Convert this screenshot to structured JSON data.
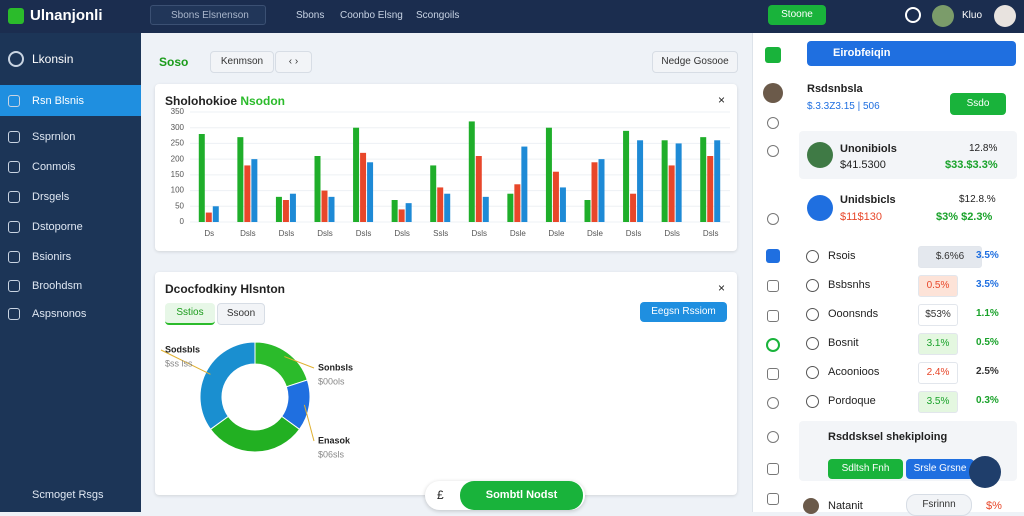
{
  "topbar": {
    "logo": "Ulnanjonli",
    "search": "Sbons Elsnenson",
    "nav": [
      "Sbons",
      "Coonbo Elsng",
      "Scongoils"
    ],
    "button": "Stoone",
    "user": "Kluo"
  },
  "sidebar": {
    "brand": "Lkonsin",
    "items": [
      "Rsn Blsnis",
      "Ssprnlon",
      "Conmois",
      "Drsgels",
      "Dstoporne",
      "Bsionirs",
      "Broohdsm",
      "Aspsnonos"
    ],
    "footer": "Scmoget Rsgs"
  },
  "main": {
    "title": "Soso",
    "buttons": [
      "Kenmson",
      "‹ ›"
    ],
    "right_button": "Nedge Gosooe"
  },
  "chart_data": [
    {
      "type": "bar",
      "title": "Sholohokioe",
      "subtitle": "Nsodon",
      "categories": [
        "Ds",
        "Dsls",
        "Dsls",
        "Dsls",
        "Dsls",
        "Dsls",
        "Ssls",
        "Dsls",
        "Dsle",
        "Dsle",
        "Dsle",
        "Dsls",
        "Dsls",
        "Dsls"
      ],
      "series": [
        {
          "name": "Green",
          "color": "#1fae2a",
          "values": [
            280,
            270,
            80,
            210,
            300,
            70,
            180,
            320,
            90,
            300,
            70,
            290,
            260,
            270
          ]
        },
        {
          "name": "Red",
          "color": "#e8472a",
          "values": [
            30,
            180,
            70,
            100,
            220,
            40,
            110,
            210,
            120,
            160,
            190,
            90,
            180,
            210
          ]
        },
        {
          "name": "Blue",
          "color": "#1e8ad6",
          "values": [
            50,
            200,
            90,
            80,
            190,
            60,
            90,
            80,
            240,
            110,
            200,
            260,
            250,
            260
          ]
        }
      ],
      "ylim": [
        0,
        350
      ],
      "yticks": [
        0,
        50,
        100,
        150,
        200,
        250,
        300,
        350
      ],
      "grid": true
    },
    {
      "type": "pie",
      "title": "Dcocfodkiny Hlsnton",
      "categories": [
        "Sonbsls",
        "Enasok",
        null,
        "Sodsbls"
      ],
      "values": [
        20,
        15,
        30,
        35
      ],
      "colors": [
        "#2bbb2b",
        "#1f6fe0",
        "#22b022",
        "#1a8fd0"
      ],
      "annotations": [
        "$00ols",
        "$06sls",
        null,
        "$ss lss"
      ]
    }
  ],
  "panel2": {
    "tabs": [
      "Sstios",
      "Ssoon"
    ],
    "button": "Eegsn Rssiom"
  },
  "floating": {
    "icon": "£",
    "button": "Sombtl Nodst"
  },
  "right": {
    "header": "Eirobfeiqin",
    "label": "Rsdsnbsla",
    "amount": "$.3.3Z3.15 | 506",
    "button": "Ssdo",
    "cards": [
      {
        "name": "Unonibiols",
        "value": "$41.5300",
        "pct": "12.8%",
        "change": "$33.$3.3%"
      },
      {
        "name": "Unidsbicls",
        "value": "$11$130",
        "pct": "$12.8.%",
        "change": "$3% $2.3%"
      }
    ],
    "rows": [
      [
        "Rsois",
        "$.6%6",
        "3.5%"
      ],
      [
        "Bsbsnhs",
        "0.5%",
        "3.5%"
      ],
      [
        "Ooonsnds",
        "$53%",
        "1.1%"
      ],
      [
        "Bosnit",
        "3.1%",
        "0.5%"
      ],
      [
        "Acoonioos",
        "2.4%",
        "2.5%"
      ],
      [
        "Pordoque",
        "3.5%",
        "0.3%"
      ]
    ],
    "section": "Rsddsksel shekiploing",
    "section_buttons": [
      "Sdltsh Fnh",
      "Srsle Grsne"
    ],
    "footer": [
      "Natanit",
      "Fsrinnn",
      "$%"
    ]
  }
}
